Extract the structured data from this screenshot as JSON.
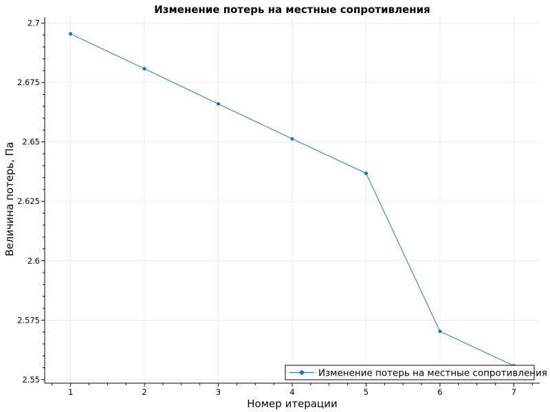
{
  "chart_data": {
    "type": "line",
    "title": "Изменение потерь на местные сопротивления",
    "xlabel": "Номер итерации",
    "ylabel": "Величина потерь, Па",
    "x": [
      1,
      2,
      3,
      4,
      5,
      6,
      7
    ],
    "x_ticks": [
      "1",
      "2",
      "3",
      "4",
      "5",
      "6",
      "7"
    ],
    "y_ticks": [
      "2.55",
      "2.575",
      "2.6",
      "2.625",
      "2.65",
      "2.675",
      "2.7"
    ],
    "xlim": [
      0.65,
      7.35
    ],
    "ylim": [
      2.5485,
      2.7025
    ],
    "grid": true,
    "legend_position": "bottom-right",
    "series": [
      {
        "name": "Изменение потерь на местные сопротивления",
        "values": [
          2.6955,
          2.6808,
          2.666,
          2.6513,
          2.6368,
          2.5703,
          2.5558
        ],
        "color": "#1f77b4"
      }
    ]
  }
}
